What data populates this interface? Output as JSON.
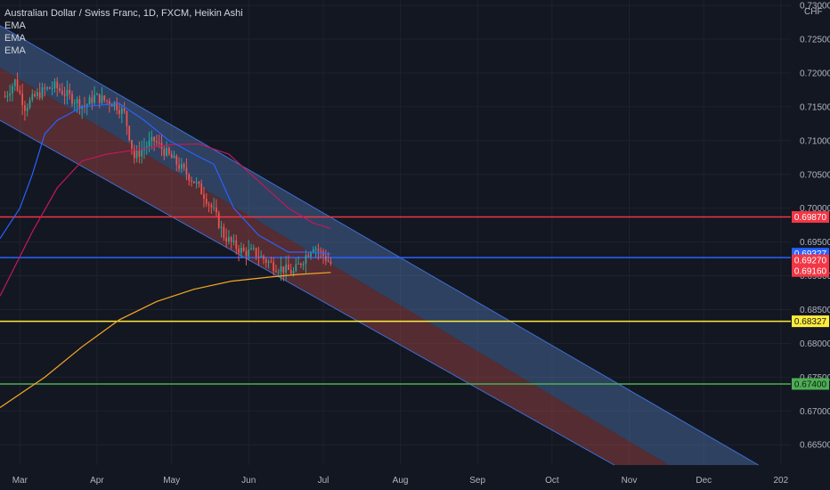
{
  "header": {
    "symbol_title": "Australian Dollar / Swiss Franc, 1D, FXCM, Heikin Ashi",
    "indicators": [
      "EMA",
      "EMA",
      "EMA"
    ]
  },
  "price_axis": {
    "currency": "CHF"
  },
  "colors": {
    "background": "#131722",
    "candle_up": "#26a69a",
    "candle_down": "#ef5350",
    "ema_fast": "#2962ff",
    "ema_mid": "#c2185b",
    "ema_slow": "#f9a825",
    "channel_upper_fill": "#5b86c5",
    "channel_lower_fill": "#c0504d",
    "hline_red": "#f23645",
    "hline_blue": "#2962ff",
    "hline_yellow": "#ffeb3b",
    "hline_green": "#4caf50"
  },
  "chart_data": {
    "type": "candlestick",
    "title": "Australian Dollar / Swiss Franc, 1D, FXCM, Heikin Ashi",
    "ylabel": "CHF",
    "ylim": [
      0.662,
      0.7308
    ],
    "y_ticks": [
      "0.73000",
      "0.72500",
      "0.72000",
      "0.71500",
      "0.71000",
      "0.70500",
      "0.70000",
      "0.69500",
      "0.69000",
      "0.68500",
      "0.68000",
      "0.67500",
      "0.67000",
      "0.66500"
    ],
    "x_ticks": [
      "Mar",
      "Apr",
      "May",
      "Jun",
      "Jul",
      "Aug",
      "Sep",
      "Oct",
      "Nov",
      "Dec",
      "202"
    ],
    "x_tick_days": [
      0,
      31,
      61,
      92,
      122,
      153,
      184,
      214,
      245,
      275,
      306
    ],
    "xlim_days": [
      -8,
      310
    ],
    "candles_day_range": [
      -6,
      125
    ],
    "candle_anchors": [
      [
        -6,
        0.7165
      ],
      [
        -2,
        0.7188
      ],
      [
        2,
        0.715
      ],
      [
        6,
        0.7165
      ],
      [
        10,
        0.7175
      ],
      [
        14,
        0.718
      ],
      [
        18,
        0.717
      ],
      [
        22,
        0.716
      ],
      [
        26,
        0.715
      ],
      [
        30,
        0.7165
      ],
      [
        34,
        0.716
      ],
      [
        38,
        0.7155
      ],
      [
        42,
        0.714
      ],
      [
        46,
        0.7075
      ],
      [
        50,
        0.709
      ],
      [
        54,
        0.71
      ],
      [
        58,
        0.7085
      ],
      [
        62,
        0.707
      ],
      [
        66,
        0.7055
      ],
      [
        70,
        0.704
      ],
      [
        74,
        0.702
      ],
      [
        78,
        0.6995
      ],
      [
        82,
        0.696
      ],
      [
        86,
        0.6945
      ],
      [
        90,
        0.6935
      ],
      [
        94,
        0.6935
      ],
      [
        98,
        0.6925
      ],
      [
        102,
        0.6915
      ],
      [
        106,
        0.691
      ],
      [
        110,
        0.6905
      ],
      [
        114,
        0.6925
      ],
      [
        118,
        0.6945
      ],
      [
        122,
        0.693
      ],
      [
        125,
        0.6918
      ]
    ],
    "ema_fast": [
      [
        -8,
        0.6955
      ],
      [
        0,
        0.7
      ],
      [
        5,
        0.705
      ],
      [
        10,
        0.711
      ],
      [
        15,
        0.713
      ],
      [
        25,
        0.715
      ],
      [
        40,
        0.7155
      ],
      [
        50,
        0.713
      ],
      [
        60,
        0.71
      ],
      [
        70,
        0.708
      ],
      [
        78,
        0.7065
      ],
      [
        86,
        0.7
      ],
      [
        96,
        0.696
      ],
      [
        108,
        0.6935
      ],
      [
        118,
        0.6935
      ],
      [
        125,
        0.6932
      ]
    ],
    "ema_mid": [
      [
        -8,
        0.687
      ],
      [
        5,
        0.6965
      ],
      [
        15,
        0.703
      ],
      [
        25,
        0.707
      ],
      [
        35,
        0.708
      ],
      [
        48,
        0.7087
      ],
      [
        60,
        0.7094
      ],
      [
        72,
        0.7095
      ],
      [
        84,
        0.708
      ],
      [
        96,
        0.704
      ],
      [
        108,
        0.7
      ],
      [
        118,
        0.6978
      ],
      [
        125,
        0.697
      ]
    ],
    "ema_slow": [
      [
        -8,
        0.6705
      ],
      [
        10,
        0.675
      ],
      [
        25,
        0.6795
      ],
      [
        40,
        0.6835
      ],
      [
        55,
        0.6862
      ],
      [
        70,
        0.688
      ],
      [
        85,
        0.6892
      ],
      [
        100,
        0.6898
      ],
      [
        112,
        0.6902
      ],
      [
        125,
        0.6905
      ]
    ],
    "channel": {
      "upper": {
        "start": [
          -8,
          0.727
        ],
        "end": [
          297,
          0.662
        ]
      },
      "middle": {
        "start": [
          -8,
          0.7208
        ],
        "end": [
          261,
          0.662
        ]
      },
      "lower": {
        "start": [
          -8,
          0.713
        ],
        "end": [
          239,
          0.662
        ]
      }
    },
    "horizontal_lines": [
      {
        "label": "0.69870",
        "value": 0.6987,
        "color": "#f23645"
      },
      {
        "label": "0.69270",
        "value": 0.6927,
        "color": "#2962ff"
      },
      {
        "label": "0.68327",
        "value": 0.68327,
        "color": "#ffeb3b"
      },
      {
        "label": "0.67400",
        "value": 0.674,
        "color": "#4caf50"
      }
    ],
    "price_tags": [
      {
        "label": "0.69870",
        "value": 0.6987,
        "bg": "#f23645",
        "fg": "#ffffff"
      },
      {
        "label": "0.69327",
        "value": 0.69327,
        "bg": "#2962ff",
        "fg": "#ffffff"
      },
      {
        "label": "0.69270",
        "value": 0.6923,
        "bg": "#f23645",
        "fg": "#ffffff"
      },
      {
        "label": "0.69160",
        "value": 0.6907,
        "bg": "#f23645",
        "fg": "#ffffff"
      },
      {
        "label": "0.68327",
        "value": 0.68327,
        "bg": "#ffeb3b",
        "fg": "#131722"
      },
      {
        "label": "0.67400",
        "value": 0.674,
        "bg": "#4caf50",
        "fg": "#131722"
      }
    ]
  }
}
